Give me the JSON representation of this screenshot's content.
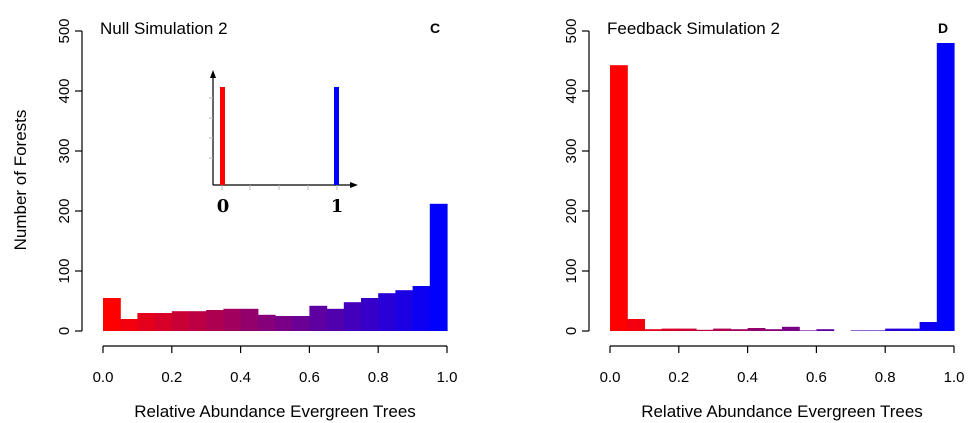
{
  "chart_data": [
    {
      "type": "bar",
      "panel_label": "C",
      "title": "Null Simulation 2",
      "xlabel": "Relative Abundance Evergreen Trees",
      "ylabel": "Number of Forests",
      "xlim": [
        0,
        1
      ],
      "ylim": [
        0,
        500
      ],
      "xticks": [
        "0.0",
        "0.2",
        "0.4",
        "0.6",
        "0.8",
        "1.0"
      ],
      "yticks": [
        "0",
        "100",
        "200",
        "300",
        "400",
        "500"
      ],
      "bin_width": 0.05,
      "color_start": "#ff0000",
      "color_end": "#0000ff",
      "values": [
        55,
        20,
        30,
        30,
        33,
        33,
        35,
        37,
        37,
        27,
        25,
        25,
        42,
        37,
        48,
        55,
        63,
        68,
        75,
        212
      ],
      "inset": {
        "type": "bar",
        "xticks": [
          "0",
          "1"
        ],
        "bars": [
          {
            "x": 0,
            "value": 1,
            "color": "#ff0000"
          },
          {
            "x": 1,
            "value": 1,
            "color": "#0000ff"
          }
        ]
      }
    },
    {
      "type": "bar",
      "panel_label": "D",
      "title": "Feedback Simulation 2",
      "xlabel": "Relative Abundance Evergreen Trees",
      "ylabel": "",
      "xlim": [
        0,
        1
      ],
      "ylim": [
        0,
        500
      ],
      "xticks": [
        "0.0",
        "0.2",
        "0.4",
        "0.6",
        "0.8",
        "1.0"
      ],
      "yticks": [
        "0",
        "100",
        "200",
        "300",
        "400",
        "500"
      ],
      "bin_width": 0.05,
      "color_start": "#ff0000",
      "color_end": "#0000ff",
      "values": [
        443,
        20,
        3,
        4,
        4,
        2,
        4,
        3,
        5,
        3,
        7,
        1,
        3,
        0,
        1,
        1,
        4,
        4,
        15,
        480
      ]
    }
  ]
}
